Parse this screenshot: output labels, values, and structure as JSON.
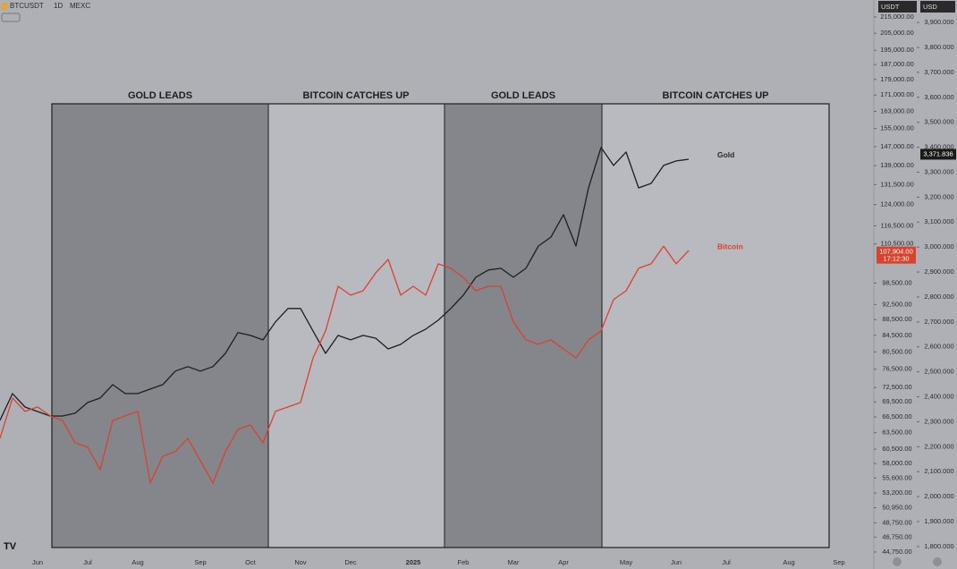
{
  "header": {
    "symbol": "BTCUSDT",
    "interval": "1D",
    "exchange": "MEXC",
    "left_unit": "USDT",
    "right_unit": "USD"
  },
  "chart_data": {
    "type": "line",
    "annotations": [
      "GOLD LEADS",
      "BITCOIN CATCHES UP",
      "GOLD LEADS",
      "BITCOIN CATCHES UP"
    ],
    "categories": [
      null,
      null,
      null,
      "Jun",
      null,
      null,
      null,
      "Jul",
      null,
      null,
      null,
      "Aug",
      null,
      null,
      null,
      null,
      "Sep",
      null,
      null,
      null,
      "Oct",
      null,
      null,
      null,
      "Nov",
      null,
      null,
      null,
      "Dec",
      null,
      null,
      null,
      null,
      "2025",
      null,
      null,
      null,
      "Feb",
      null,
      null,
      null,
      "Mar",
      null,
      null,
      null,
      "Apr",
      null,
      null,
      null,
      null,
      "May",
      null,
      null,
      null,
      "Jun",
      null,
      null,
      null,
      "Jul",
      null,
      null,
      null,
      null,
      "Aug",
      null,
      null,
      null,
      "Sep",
      null,
      null
    ],
    "series": [
      {
        "name": "Gold",
        "color": "#1e1e1e",
        "axis": "y2",
        "values": [
          2306,
          2413,
          2359,
          2341,
          2323,
          2323,
          2334,
          2377,
          2395,
          2449,
          2413,
          2413,
          2431,
          2449,
          2503,
          2521,
          2503,
          2521,
          2574,
          2657,
          2646,
          2628,
          2700,
          2754,
          2754,
          2664,
          2574,
          2646,
          2628,
          2646,
          2635,
          2592,
          2610,
          2646,
          2671,
          2707,
          2754,
          2807,
          2879,
          2908,
          2915,
          2879,
          2915,
          3004,
          3040,
          3130,
          3004,
          3237,
          3399,
          3327,
          3381,
          3237,
          3255,
          3327,
          3345,
          3352,
          null,
          null,
          null,
          null,
          null,
          null,
          null,
          null,
          null,
          null,
          null,
          null,
          null,
          null
        ],
        "last_price": {
          "value": 3371.836,
          "label": "3,371.836"
        }
      },
      {
        "name": "Bitcoin",
        "color": "#d8432f",
        "axis": "y",
        "values": [
          62470,
          70290,
          67600,
          68480,
          66720,
          65810,
          61650,
          60860,
          56970,
          65810,
          66720,
          67600,
          54780,
          59260,
          60070,
          62470,
          58490,
          54780,
          60070,
          64120,
          64950,
          61650,
          67600,
          68480,
          69380,
          79080,
          85590,
          97560,
          95060,
          96300,
          101470,
          105590,
          95060,
          97560,
          95060,
          104210,
          102850,
          100140,
          96300,
          97560,
          97560,
          87850,
          83390,
          82310,
          83390,
          81180,
          79080,
          83390,
          85590,
          93840,
          96300,
          102850,
          104210,
          109790,
          104210,
          108370,
          null,
          null,
          null,
          null,
          null,
          null,
          null,
          null,
          null,
          null,
          null,
          null,
          null,
          null
        ],
        "last_price": {
          "value": 107904,
          "label": "107,904.00"
        },
        "countdown": "17:12:30"
      }
    ],
    "ylog": true,
    "ylim": [
      42570,
      226000
    ],
    "yticks": [
      {
        "value": 215000,
        "label": "215,000.00"
      },
      {
        "value": 205000,
        "label": "205,000.00"
      },
      {
        "value": 195000,
        "label": "195,000.00"
      },
      {
        "value": 187000,
        "label": "187,000.00"
      },
      {
        "value": 179000,
        "label": "179,000.00"
      },
      {
        "value": 171000,
        "label": "171,000.00"
      },
      {
        "value": 163000,
        "label": "163,000.00"
      },
      {
        "value": 155000,
        "label": "155,000.00"
      },
      {
        "value": 147000,
        "label": "147,000.00"
      },
      {
        "value": 139000,
        "label": "139,000.00"
      },
      {
        "value": 131500,
        "label": "131,500.00"
      },
      {
        "value": 124000,
        "label": "124,000.00"
      },
      {
        "value": 116500,
        "label": "116,500.00"
      },
      {
        "value": 110500,
        "label": "110,500.00"
      },
      {
        "value": 98500,
        "label": "98,500.00"
      },
      {
        "value": 92500,
        "label": "92,500.00"
      },
      {
        "value": 88500,
        "label": "88,500.00"
      },
      {
        "value": 84500,
        "label": "84,500.00"
      },
      {
        "value": 80500,
        "label": "80,500.00"
      },
      {
        "value": 76500,
        "label": "76,500.00"
      },
      {
        "value": 72500,
        "label": "72,500.00"
      },
      {
        "value": 69500,
        "label": "69,500.00"
      },
      {
        "value": 66500,
        "label": "66,500.00"
      },
      {
        "value": 63500,
        "label": "63,500.00"
      },
      {
        "value": 60500,
        "label": "60,500.00"
      },
      {
        "value": 58000,
        "label": "58,000.00"
      },
      {
        "value": 55600,
        "label": "55,600.00"
      },
      {
        "value": 53200,
        "label": "53,200.00"
      },
      {
        "value": 50950,
        "label": "50,950.00"
      },
      {
        "value": 48750,
        "label": "48,750.00"
      },
      {
        "value": 46750,
        "label": "46,750.00"
      },
      {
        "value": 44750,
        "label": "44,750.00"
      }
    ],
    "y2lim": [
      1710,
      3990
    ],
    "y2ticks": [
      {
        "value": 3900,
        "label": "3,900.000"
      },
      {
        "value": 3800,
        "label": "3,800.000"
      },
      {
        "value": 3700,
        "label": "3,700.000"
      },
      {
        "value": 3600,
        "label": "3,600.000"
      },
      {
        "value": 3500,
        "label": "3,500.000"
      },
      {
        "value": 3400,
        "label": "3,400.000"
      },
      {
        "value": 3300,
        "label": "3,300.000"
      },
      {
        "value": 3200,
        "label": "3,200.000"
      },
      {
        "value": 3100,
        "label": "3,100.000"
      },
      {
        "value": 3000,
        "label": "3,000.000"
      },
      {
        "value": 2900,
        "label": "2,900.000"
      },
      {
        "value": 2800,
        "label": "2,800.000"
      },
      {
        "value": 2700,
        "label": "2,700.000"
      },
      {
        "value": 2600,
        "label": "2,600.000"
      },
      {
        "value": 2500,
        "label": "2,500.000"
      },
      {
        "value": 2400,
        "label": "2,400.000"
      },
      {
        "value": 2300,
        "label": "2,300.000"
      },
      {
        "value": 2200,
        "label": "2,200.000"
      },
      {
        "value": 2100,
        "label": "2,100.000"
      },
      {
        "value": 2000,
        "label": "2,000.000"
      },
      {
        "value": 1900,
        "label": "1,900.000"
      },
      {
        "value": 1800,
        "label": "1,800.000"
      }
    ],
    "grid": false
  }
}
